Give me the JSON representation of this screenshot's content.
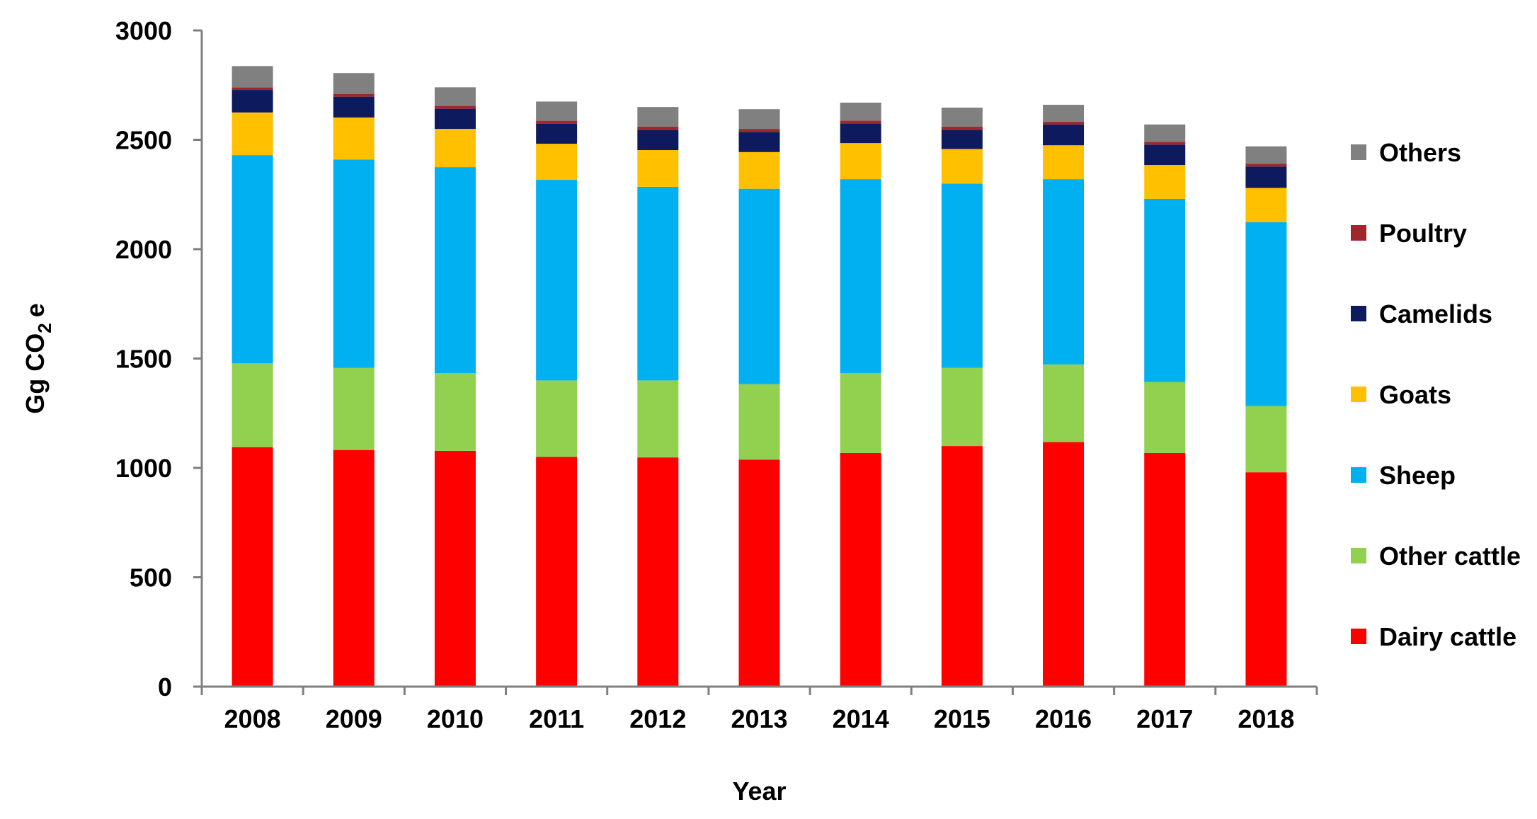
{
  "chart_data": {
    "type": "stacked-bar",
    "title": "",
    "xlabel": "Year",
    "ylabel": "Gg CO",
    "ylabel_subscript": "2",
    "ylabel_suffix": "e",
    "ylim": [
      0,
      3000
    ],
    "yticks": [
      0,
      500,
      1000,
      1500,
      2000,
      2500,
      3000
    ],
    "grid": false,
    "legend_position": "right",
    "categories": [
      "2008",
      "2009",
      "2010",
      "2011",
      "2012",
      "2013",
      "2014",
      "2015",
      "2016",
      "2017",
      "2018"
    ],
    "series": [
      {
        "name": "Dairy cattle",
        "color": "#FF0000",
        "values": [
          1095,
          1082,
          1078,
          1050,
          1048,
          1038,
          1068,
          1100,
          1118,
          1068,
          980
        ]
      },
      {
        "name": "Other cattle",
        "color": "#92D050",
        "values": [
          383,
          375,
          355,
          350,
          352,
          345,
          365,
          358,
          355,
          325,
          303
        ]
      },
      {
        "name": "Sheep",
        "color": "#00B0F0",
        "values": [
          952,
          953,
          942,
          917,
          885,
          893,
          887,
          842,
          847,
          837,
          840
        ]
      },
      {
        "name": "Goats",
        "color": "#FFC000",
        "values": [
          195,
          192,
          175,
          165,
          168,
          168,
          165,
          158,
          155,
          155,
          157
        ]
      },
      {
        "name": "Camelids",
        "color": "#0D1B5E",
        "values": [
          103,
          95,
          92,
          92,
          93,
          92,
          90,
          88,
          95,
          93,
          98
        ]
      },
      {
        "name": "Poultry",
        "color": "#A0282D",
        "values": [
          12,
          13,
          13,
          13,
          14,
          14,
          13,
          14,
          13,
          13,
          12
        ]
      },
      {
        "name": "Others",
        "color": "#808080",
        "values": [
          97,
          95,
          85,
          88,
          90,
          90,
          82,
          87,
          77,
          79,
          80
        ]
      }
    ]
  }
}
